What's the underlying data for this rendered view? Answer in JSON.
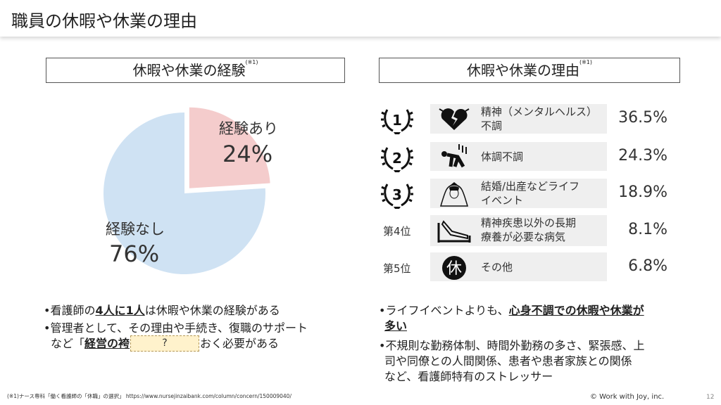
{
  "title": "職員の休暇や休業の理由",
  "left": {
    "heading": "休暇や休業の経験",
    "note_mark": "(※1)",
    "bullets": [
      {
        "pre": "•看護師の",
        "bold": "4人に1人",
        "post": "は休暇や休業の経験がある"
      },
      {
        "line1": "•管理者として、その理由や手続き、復職のサポート",
        "pre": "など「",
        "bold": "経営の袴",
        "post": "おく必要がある"
      }
    ],
    "tooltip": "?"
  },
  "chart_data": {
    "type": "pie",
    "slices": [
      {
        "label": "経験あり",
        "value": 24,
        "display": "24%",
        "color": "#f4cccc",
        "exploded": true
      },
      {
        "label": "経験なし",
        "value": 76,
        "display": "76%",
        "color": "#cfe2f3"
      }
    ]
  },
  "right": {
    "heading": "休暇や休業の理由",
    "note_mark": "(※1)",
    "rows": [
      {
        "rank": "1",
        "icon": "broken-heart-icon",
        "lines": [
          "精神（メンタルヘルス）",
          "不調"
        ],
        "pct": "36.5%"
      },
      {
        "rank": "2",
        "icon": "collapsing-person-icon",
        "lines": [
          "体調不調"
        ],
        "pct": "24.3%"
      },
      {
        "rank": "3",
        "icon": "bride-icon",
        "lines": [
          "結婚/出産などライフ",
          "イベント"
        ],
        "pct": "18.9%"
      },
      {
        "rank": "第4位",
        "icon": "hospital-bed-icon",
        "lines": [
          "精神疾患以外の長期",
          "療養が必要な病気"
        ],
        "pct": "8.1%"
      },
      {
        "rank": "第5位",
        "icon": "rest-kanji-icon",
        "icon_text": "休",
        "lines": [
          "その他"
        ],
        "pct": "6.8%"
      }
    ],
    "bullets": [
      {
        "pre": "•ライフイベントよりも、",
        "bold": "心身不調での休暇や休業が",
        "bold2": "多い"
      },
      {
        "lines": [
          "•不規則な勤務体制、時間外勤務の多さ、緊張感、上",
          "司や同僚との人間関係、患者や患者家族との関係",
          "など、看護師特有のストレッサー"
        ]
      }
    ]
  },
  "footer": {
    "note": "(※1)ナース専科「働く看護師の「休職」の選択」 https://www.nursejinzaibank.com/column/concern/150009040/",
    "copyright": "© Work with Joy, inc.",
    "page": "12"
  }
}
